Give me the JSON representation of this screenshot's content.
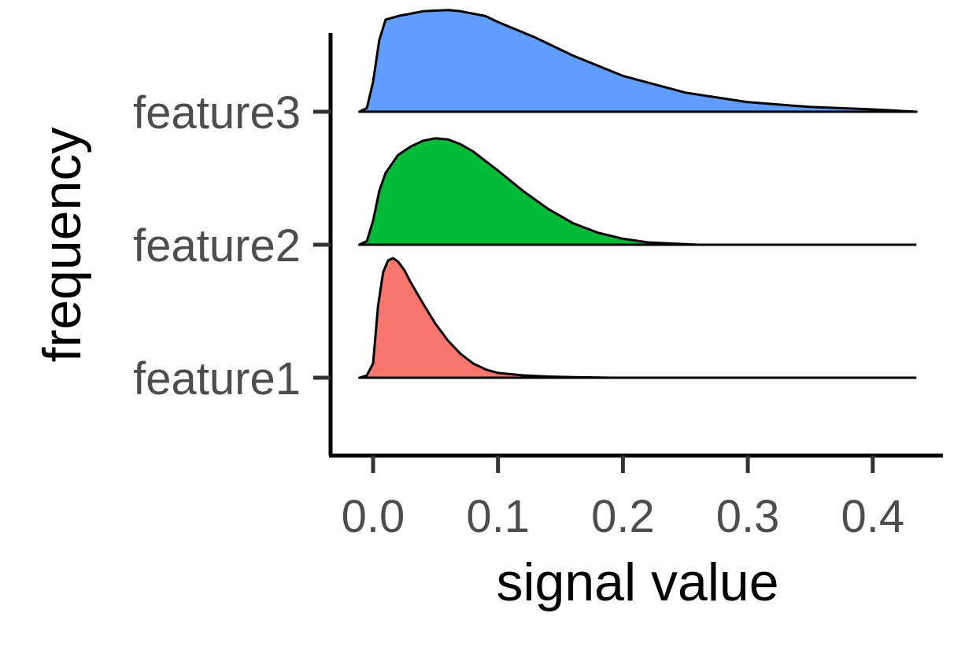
{
  "chart_data": {
    "type": "area",
    "subtype": "ridgeline",
    "xlabel": "signal value",
    "ylabel": "frequency",
    "x_ticks": [
      0.0,
      0.1,
      0.2,
      0.3,
      0.4
    ],
    "x_tick_labels": [
      "0.0",
      "0.1",
      "0.2",
      "0.3",
      "0.4"
    ],
    "xlim": [
      -0.033,
      0.455
    ],
    "x_range": [
      -0.011,
      0.435
    ],
    "grid": false,
    "legend": "none",
    "baseline_color": "#000000",
    "series": [
      {
        "name": "feature1",
        "color": "#F8766D",
        "x": [
          -0.011,
          -0.005,
          0.0,
          0.004,
          0.008,
          0.012,
          0.016,
          0.02,
          0.025,
          0.03,
          0.04,
          0.05,
          0.06,
          0.07,
          0.08,
          0.09,
          0.1,
          0.12,
          0.14,
          0.16,
          0.19
        ],
        "y": [
          0.0,
          0.02,
          0.12,
          0.6,
          0.88,
          0.98,
          1.0,
          0.97,
          0.9,
          0.8,
          0.62,
          0.45,
          0.31,
          0.2,
          0.12,
          0.07,
          0.04,
          0.02,
          0.01,
          0.005,
          0.0
        ]
      },
      {
        "name": "feature2",
        "color": "#00BA38",
        "x": [
          -0.011,
          -0.005,
          0.0,
          0.005,
          0.01,
          0.02,
          0.03,
          0.04,
          0.05,
          0.06,
          0.07,
          0.08,
          0.1,
          0.12,
          0.14,
          0.16,
          0.18,
          0.2,
          0.22,
          0.24,
          0.26
        ],
        "y": [
          0.0,
          0.03,
          0.2,
          0.45,
          0.6,
          0.75,
          0.82,
          0.87,
          0.89,
          0.88,
          0.84,
          0.78,
          0.62,
          0.45,
          0.3,
          0.18,
          0.1,
          0.05,
          0.02,
          0.01,
          0.0
        ]
      },
      {
        "name": "feature3",
        "color": "#619CFF",
        "x": [
          -0.011,
          -0.005,
          0.0,
          0.005,
          0.01,
          0.02,
          0.04,
          0.06,
          0.07,
          0.09,
          0.1,
          0.13,
          0.16,
          0.2,
          0.25,
          0.3,
          0.35,
          0.4,
          0.435
        ],
        "y": [
          0.0,
          0.03,
          0.25,
          0.6,
          0.77,
          0.8,
          0.84,
          0.85,
          0.84,
          0.8,
          0.75,
          0.62,
          0.47,
          0.3,
          0.16,
          0.08,
          0.04,
          0.02,
          0.0
        ]
      }
    ]
  }
}
